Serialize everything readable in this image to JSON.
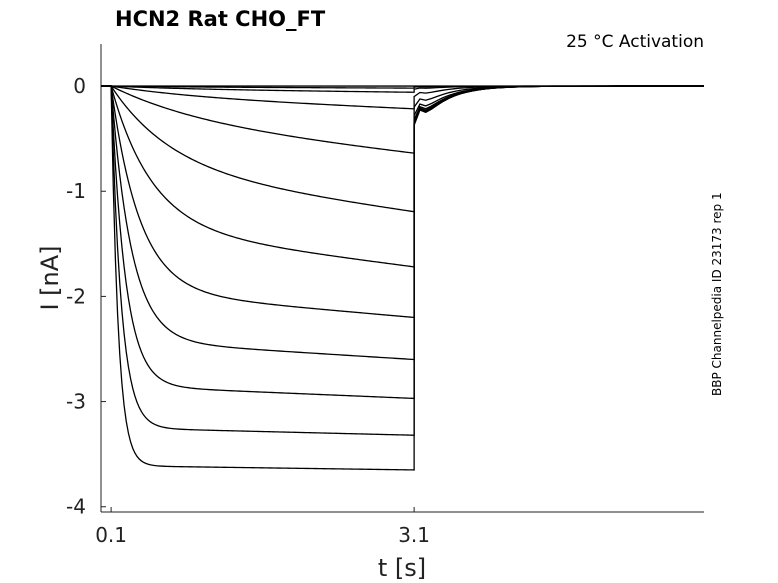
{
  "chart_data": {
    "type": "line",
    "title": "HCN2  Rat  CHO_FT",
    "annotation": "25 °C  Activation",
    "side_label": "BBP Channelpedia ID 23173 rep 1",
    "xlabel": "t [s]",
    "ylabel": "I [nA]",
    "xlim": [
      0.0,
      5.97
    ],
    "ylim": [
      -4.05,
      0.4
    ],
    "x_ticks": [
      {
        "value": 0.1,
        "label": "0.1"
      },
      {
        "value": 3.1,
        "label": "3.1"
      }
    ],
    "y_ticks": [
      {
        "value": 0,
        "label": "0"
      },
      {
        "value": -1,
        "label": "-1"
      },
      {
        "value": -2,
        "label": "-2"
      },
      {
        "value": -3,
        "label": "-3"
      },
      {
        "value": -4,
        "label": "-4"
      }
    ],
    "step_start": 0.1,
    "step_end": 3.1,
    "grid": false,
    "legend": false,
    "series": [
      {
        "i_end": 0.0,
        "i_fast": 0.0,
        "tau": 1.0,
        "tail": 0.0
      },
      {
        "i_end": -0.02,
        "i_fast": -0.01,
        "tau": 1.0,
        "tail": -0.01
      },
      {
        "i_end": -0.06,
        "i_fast": -0.03,
        "tau": 0.9,
        "tail": -0.03
      },
      {
        "i_end": -0.22,
        "i_fast": -0.1,
        "tau": 0.9,
        "tail": -0.1
      },
      {
        "i_end": -0.65,
        "i_fast": -0.34,
        "tau": 0.9,
        "tail": -0.2
      },
      {
        "i_end": -1.2,
        "i_fast": -0.8,
        "tau": 0.6,
        "tail": -0.28
      },
      {
        "i_end": -1.72,
        "i_fast": -1.35,
        "tau": 0.4,
        "tail": -0.32
      },
      {
        "i_end": -2.2,
        "i_fast": -1.95,
        "tau": 0.28,
        "tail": -0.34
      },
      {
        "i_end": -2.6,
        "i_fast": -2.42,
        "tau": 0.2,
        "tail": -0.35
      },
      {
        "i_end": -2.97,
        "i_fast": -2.85,
        "tau": 0.14,
        "tail": -0.36
      },
      {
        "i_end": -3.32,
        "i_fast": -3.25,
        "tau": 0.1,
        "tail": -0.37
      },
      {
        "i_end": -3.65,
        "i_fast": -3.61,
        "tau": 0.07,
        "tail": -0.37
      }
    ]
  }
}
